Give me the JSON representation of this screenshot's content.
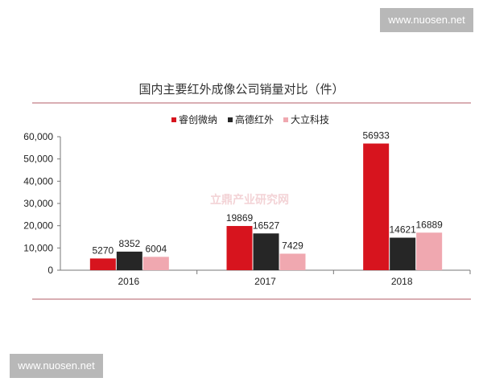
{
  "watermarks": {
    "top_right": "www.nuosen.net",
    "bottom_left": "www.nuosen.net",
    "center_logo": "立鼎产业研究网"
  },
  "chart_data": {
    "type": "bar",
    "title": "国内主要红外成像公司销量对比（件）",
    "categories": [
      "2016",
      "2017",
      "2018"
    ],
    "series": [
      {
        "name": "睿创微纳",
        "values": [
          5270,
          19869,
          56933
        ],
        "color": "#d7141e"
      },
      {
        "name": "高德红外",
        "values": [
          8352,
          16527,
          14621
        ],
        "color": "#262626"
      },
      {
        "name": "大立科技",
        "values": [
          6004,
          7429,
          16889
        ],
        "color": "#f0a8b0"
      }
    ],
    "ylim": [
      0,
      60000
    ],
    "yticks": [
      "0",
      "10,000",
      "20,000",
      "30,000",
      "40,000",
      "50,000",
      "60,000"
    ],
    "legend": "top",
    "grid": false
  }
}
